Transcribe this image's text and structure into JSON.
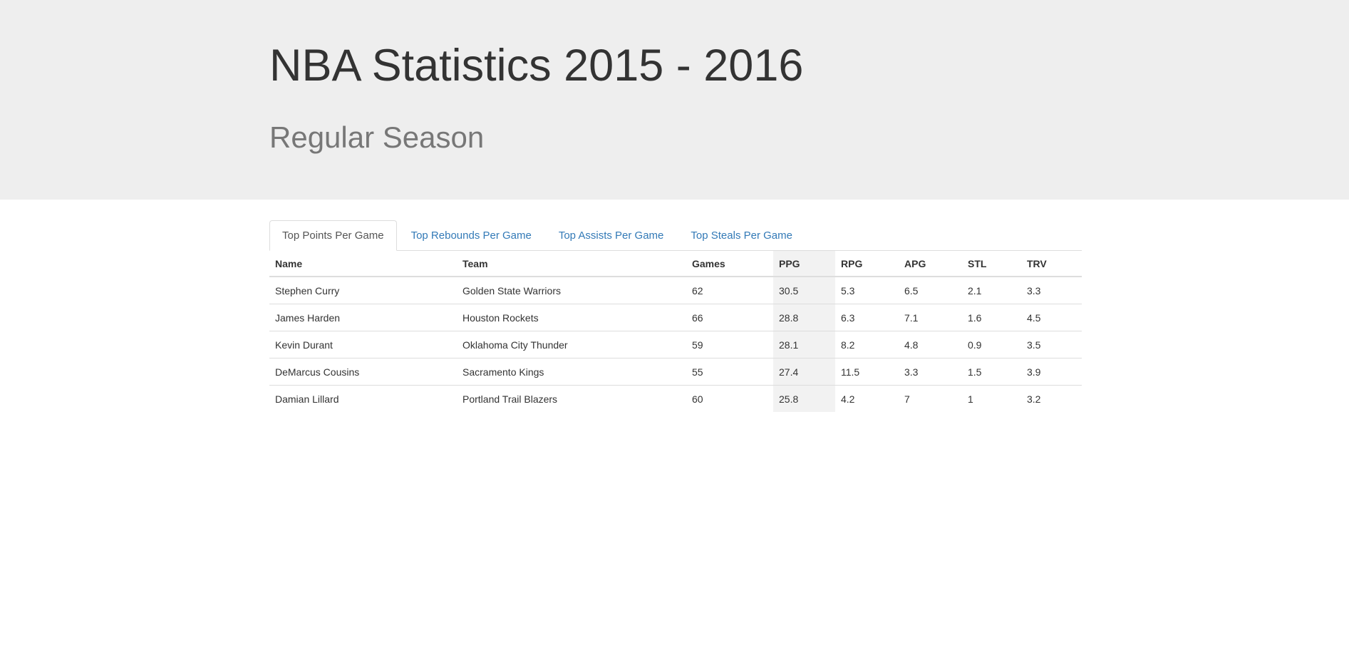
{
  "header": {
    "title": "NBA Statistics 2015 - 2016",
    "subtitle": "Regular Season"
  },
  "tabs": [
    {
      "label": "Top Points Per Game",
      "active": true
    },
    {
      "label": "Top Rebounds Per Game",
      "active": false
    },
    {
      "label": "Top Assists Per Game",
      "active": false
    },
    {
      "label": "Top Steals Per Game",
      "active": false
    }
  ],
  "colors": {
    "jumbotron_bg": "#eeeeee",
    "link": "#337ab7",
    "highlight_column_bg": "#f2f2f2"
  },
  "table": {
    "highlighted_column": "PPG",
    "headers": [
      "Name",
      "Team",
      "Games",
      "PPG",
      "RPG",
      "APG",
      "STL",
      "TRV"
    ],
    "rows": [
      [
        "Stephen Curry",
        "Golden State Warriors",
        "62",
        "30.5",
        "5.3",
        "6.5",
        "2.1",
        "3.3"
      ],
      [
        "James Harden",
        "Houston Rockets",
        "66",
        "28.8",
        "6.3",
        "7.1",
        "1.6",
        "4.5"
      ],
      [
        "Kevin Durant",
        "Oklahoma City Thunder",
        "59",
        "28.1",
        "8.2",
        "4.8",
        "0.9",
        "3.5"
      ],
      [
        "DeMarcus Cousins",
        "Sacramento Kings",
        "55",
        "27.4",
        "11.5",
        "3.3",
        "1.5",
        "3.9"
      ],
      [
        "Damian Lillard",
        "Portland Trail Blazers",
        "60",
        "25.8",
        "4.2",
        "7",
        "1",
        "3.2"
      ]
    ]
  }
}
